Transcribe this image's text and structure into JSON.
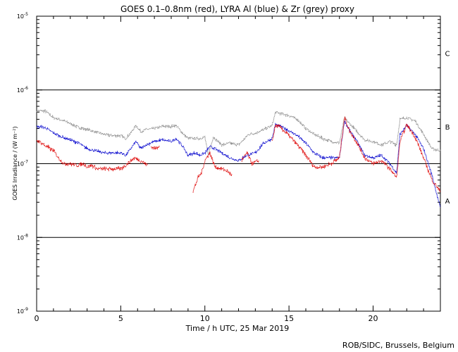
{
  "chart_data": {
    "type": "line",
    "title": "GOES 0.1–0.8nm (red), LYRA Al (blue) & Zr (grey) proxy",
    "xlabel": "Time / h UTC, 25 Mar 2019",
    "ylabel": "GOES Irradiance / (W m⁻²)",
    "xlim": [
      0,
      24
    ],
    "ylim_log10": [
      -9,
      -5
    ],
    "x_ticks": [
      0,
      5,
      10,
      15,
      20
    ],
    "y_ticks": [
      {
        "exp": -5,
        "base": "10",
        "sup": "-5"
      },
      {
        "exp": -6,
        "base": "10",
        "sup": "-6"
      },
      {
        "exp": -7,
        "base": "10",
        "sup": "-7"
      },
      {
        "exp": -8,
        "base": "10",
        "sup": "-8"
      },
      {
        "exp": -9,
        "base": "10",
        "sup": "-9"
      }
    ],
    "flare_levels": [
      {
        "label": "C",
        "value": 1e-06
      },
      {
        "label": "B",
        "value": 1e-07
      },
      {
        "label": "A",
        "value": 1e-08
      }
    ],
    "footer": "ROB/SIDC, Brussels, Belgium",
    "series": [
      {
        "name": "LYRA Zr proxy",
        "color": "#8c8c8c",
        "points": [
          [
            0,
            5.2e-07
          ],
          [
            0.5,
            5.2e-07
          ],
          [
            1,
            4.2e-07
          ],
          [
            1.5,
            3.9e-07
          ],
          [
            2,
            3.5e-07
          ],
          [
            2.5,
            3.1e-07
          ],
          [
            3,
            2.9e-07
          ],
          [
            3.5,
            2.7e-07
          ],
          [
            4,
            2.5e-07
          ],
          [
            4.5,
            2.4e-07
          ],
          [
            5,
            2.4e-07
          ],
          [
            5.3,
            2.2e-07
          ],
          [
            5.6,
            2.6e-07
          ],
          [
            5.9,
            3.3e-07
          ],
          [
            6.2,
            2.7e-07
          ],
          [
            6.5,
            2.9e-07
          ],
          [
            7,
            3e-07
          ],
          [
            7.5,
            3.2e-07
          ],
          [
            8,
            3.2e-07
          ],
          [
            8.3,
            3.3e-07
          ],
          [
            8.6,
            2.7e-07
          ],
          [
            9,
            2.2e-07
          ],
          [
            9.4,
            2.2e-07
          ],
          [
            9.7,
            2.2e-07
          ],
          [
            10,
            2.3e-07
          ],
          [
            10.2,
            1.3e-07
          ],
          [
            10.5,
            2.3e-07
          ],
          [
            11,
            1.8e-07
          ],
          [
            11.5,
            1.9e-07
          ],
          [
            12,
            1.8e-07
          ],
          [
            12.3,
            2.1e-07
          ],
          [
            12.6,
            2.5e-07
          ],
          [
            13,
            2.6e-07
          ],
          [
            13.5,
            2.9e-07
          ],
          [
            14,
            3.3e-07
          ],
          [
            14.2,
            5e-07
          ],
          [
            14.5,
            4.8e-07
          ],
          [
            15,
            4.5e-07
          ],
          [
            15.5,
            4e-07
          ],
          [
            16,
            3e-07
          ],
          [
            16.5,
            2.5e-07
          ],
          [
            17,
            2.2e-07
          ],
          [
            17.5,
            2e-07
          ],
          [
            18,
            1.9e-07
          ],
          [
            18.3,
            4.2e-07
          ],
          [
            18.6,
            3.5e-07
          ],
          [
            19,
            2.8e-07
          ],
          [
            19.5,
            2.1e-07
          ],
          [
            20,
            2e-07
          ],
          [
            20.5,
            1.8e-07
          ],
          [
            21,
            2e-07
          ],
          [
            21.4,
            1.8e-07
          ],
          [
            21.6,
            4e-07
          ],
          [
            22,
            4.2e-07
          ],
          [
            22.5,
            3.8e-07
          ],
          [
            23,
            2.5e-07
          ],
          [
            23.5,
            1.6e-07
          ],
          [
            24,
            1.5e-07
          ]
        ]
      },
      {
        "name": "LYRA Al proxy",
        "color": "#0000cc",
        "points": [
          [
            0,
            3.2e-07
          ],
          [
            0.5,
            3.1e-07
          ],
          [
            1,
            2.6e-07
          ],
          [
            1.5,
            2.3e-07
          ],
          [
            2,
            2.1e-07
          ],
          [
            2.5,
            1.9e-07
          ],
          [
            3,
            1.6e-07
          ],
          [
            3.5,
            1.5e-07
          ],
          [
            4,
            1.4e-07
          ],
          [
            4.5,
            1.4e-07
          ],
          [
            5,
            1.4e-07
          ],
          [
            5.3,
            1.3e-07
          ],
          [
            5.6,
            1.6e-07
          ],
          [
            5.9,
            2e-07
          ],
          [
            6.2,
            1.6e-07
          ],
          [
            6.5,
            1.8e-07
          ],
          [
            7,
            2e-07
          ],
          [
            7.5,
            2.1e-07
          ],
          [
            8,
            2e-07
          ],
          [
            8.3,
            2.2e-07
          ],
          [
            8.7,
            1.7e-07
          ],
          [
            9,
            1.3e-07
          ],
          [
            9.4,
            1.4e-07
          ],
          [
            9.7,
            1.3e-07
          ],
          [
            10,
            1.4e-07
          ],
          [
            10.3,
            1.7e-07
          ],
          [
            10.6,
            1.6e-07
          ],
          [
            11,
            1.4e-07
          ],
          [
            11.5,
            1.2e-07
          ],
          [
            12,
            1.1e-07
          ],
          [
            12.5,
            1.3e-07
          ],
          [
            13,
            1.4e-07
          ],
          [
            13.5,
            1.9e-07
          ],
          [
            14,
            2.2e-07
          ],
          [
            14.2,
            3.4e-07
          ],
          [
            14.5,
            3.2e-07
          ],
          [
            15,
            2.8e-07
          ],
          [
            15.5,
            2.4e-07
          ],
          [
            16,
            1.9e-07
          ],
          [
            16.5,
            1.4e-07
          ],
          [
            17,
            1.2e-07
          ],
          [
            17.5,
            1.2e-07
          ],
          [
            18,
            1.2e-07
          ],
          [
            18.3,
            3.8e-07
          ],
          [
            18.6,
            2.8e-07
          ],
          [
            19,
            2.1e-07
          ],
          [
            19.5,
            1.3e-07
          ],
          [
            20,
            1.2e-07
          ],
          [
            20.5,
            1.3e-07
          ],
          [
            21,
            1e-07
          ],
          [
            21.4,
            7.5e-08
          ],
          [
            21.6,
            2.5e-07
          ],
          [
            22,
            3.3e-07
          ],
          [
            22.5,
            2.5e-07
          ],
          [
            23,
            1.6e-07
          ],
          [
            23.5,
            7e-08
          ],
          [
            24,
            2.5e-08
          ]
        ]
      },
      {
        "name": "GOES 0.1-0.8nm",
        "color": "#dd0000",
        "segments": [
          [
            [
              0,
              2.1e-07
            ],
            [
              0.3,
              1.9e-07
            ],
            [
              0.6,
              1.7e-07
            ],
            [
              1,
              1.5e-07
            ],
            [
              1.3,
              1.2e-07
            ],
            [
              1.6,
              1e-07
            ],
            [
              2,
              1e-07
            ],
            [
              2.4,
              9.5e-08
            ],
            [
              2.8,
              1e-07
            ],
            [
              3,
              9e-08
            ],
            [
              3.3,
              9.5e-08
            ],
            [
              3.6,
              8.5e-08
            ],
            [
              4,
              8.5e-08
            ],
            [
              4.5,
              8.5e-08
            ],
            [
              5,
              8.5e-08
            ],
            [
              5.4,
              1e-07
            ],
            [
              5.8,
              1.2e-07
            ],
            [
              6.2,
              1.1e-07
            ],
            [
              6.6,
              9.5e-08
            ]
          ],
          [
            [
              6.8,
              1.7e-07
            ],
            [
              7.1,
              1.6e-07
            ],
            [
              7.3,
              1.8e-07
            ]
          ],
          [
            [
              9.3,
              4.2e-08
            ],
            [
              9.6,
              6.5e-08
            ],
            [
              9.8,
              7.5e-08
            ],
            [
              10,
              1.1e-07
            ],
            [
              10.3,
              1.4e-07
            ],
            [
              10.6,
              9e-08
            ],
            [
              11,
              8.5e-08
            ],
            [
              11.3,
              8e-08
            ],
            [
              11.6,
              7e-08
            ]
          ],
          [
            [
              12.2,
              1.1e-07
            ],
            [
              12.5,
              1.4e-07
            ],
            [
              12.8,
              1e-07
            ],
            [
              13.2,
              1.1e-07
            ]
          ],
          [
            [
              14,
              2e-07
            ],
            [
              14.2,
              3.3e-07
            ],
            [
              14.5,
              3.1e-07
            ],
            [
              15,
              2.4e-07
            ],
            [
              15.5,
              1.8e-07
            ],
            [
              16,
              1.3e-07
            ],
            [
              16.5,
              9e-08
            ],
            [
              17,
              9e-08
            ],
            [
              17.5,
              1e-07
            ],
            [
              18,
              1.2e-07
            ],
            [
              18.3,
              4.2e-07
            ],
            [
              18.6,
              2.8e-07
            ],
            [
              19,
              2e-07
            ],
            [
              19.5,
              1.2e-07
            ],
            [
              20,
              1e-07
            ],
            [
              20.5,
              1.1e-07
            ],
            [
              21,
              8.5e-08
            ],
            [
              21.4,
              6.5e-08
            ],
            [
              21.6,
              2e-07
            ],
            [
              22,
              3.4e-07
            ],
            [
              22.5,
              2.3e-07
            ],
            [
              23,
              1.2e-07
            ],
            [
              23.5,
              6e-08
            ],
            [
              24,
              4.2e-08
            ]
          ]
        ]
      }
    ]
  }
}
